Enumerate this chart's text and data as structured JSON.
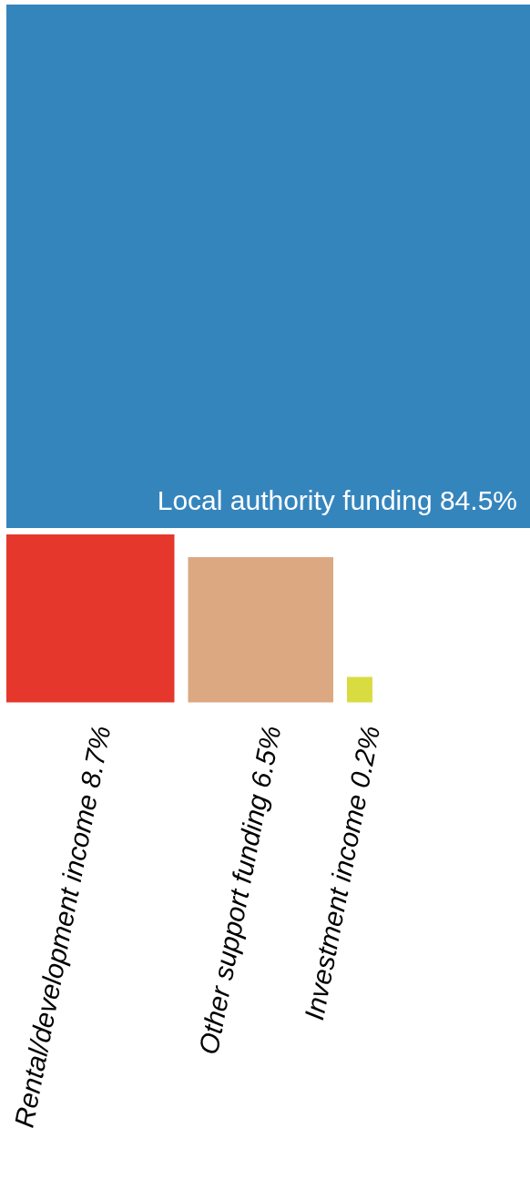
{
  "chart_data": {
    "type": "other",
    "categories": [
      "Local authority funding",
      "Rental/development income",
      "Other support funding",
      "Investment income"
    ],
    "values": [
      84.5,
      8.7,
      6.5,
      0.2
    ],
    "value_labels": [
      "84.5%",
      "8.7%",
      "6.5%",
      "0.2%"
    ],
    "colors": [
      "#3585bd",
      "#e5372c",
      "#dba881",
      "#d9dc41"
    ]
  }
}
